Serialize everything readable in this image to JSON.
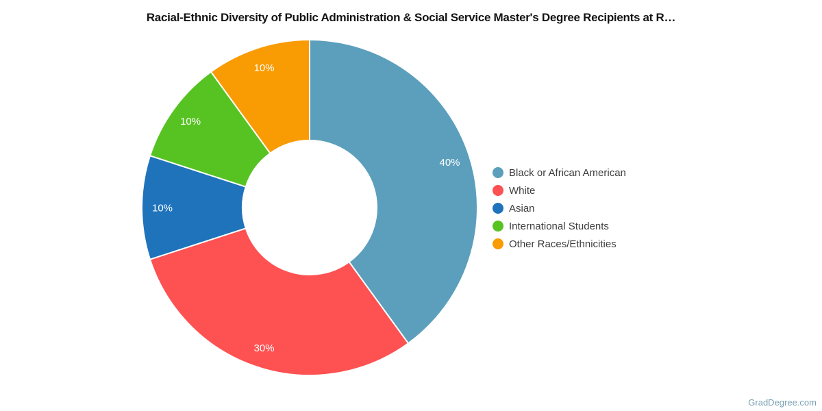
{
  "title": "Racial-Ethnic Diversity of Public Administration & Social Service Master's Degree Recipients at R…",
  "watermark": "GradDegree.com",
  "chart_data": {
    "type": "pie",
    "subtype": "donut",
    "title": "Racial-Ethnic Diversity of Public Administration & Social Service Master's Degree Recipients at R…",
    "value_unit": "percent",
    "hole_ratio": 0.4,
    "legend_position": "right",
    "start_angle_deg_from_top": 0,
    "direction": "clockwise",
    "slices": [
      {
        "label": "Black or African American",
        "value": 40,
        "display_label": "40%",
        "color": "#5b9fbc"
      },
      {
        "label": "White",
        "value": 30,
        "display_label": "30%",
        "color": "#fd5152"
      },
      {
        "label": "Asian",
        "value": 10,
        "display_label": "10%",
        "color": "#1e73bb"
      },
      {
        "label": "International Students",
        "value": 10,
        "display_label": "10%",
        "color": "#57c322"
      },
      {
        "label": "Other Races/Ethnicities",
        "value": 10,
        "display_label": "10%",
        "color": "#f99b03"
      }
    ]
  }
}
